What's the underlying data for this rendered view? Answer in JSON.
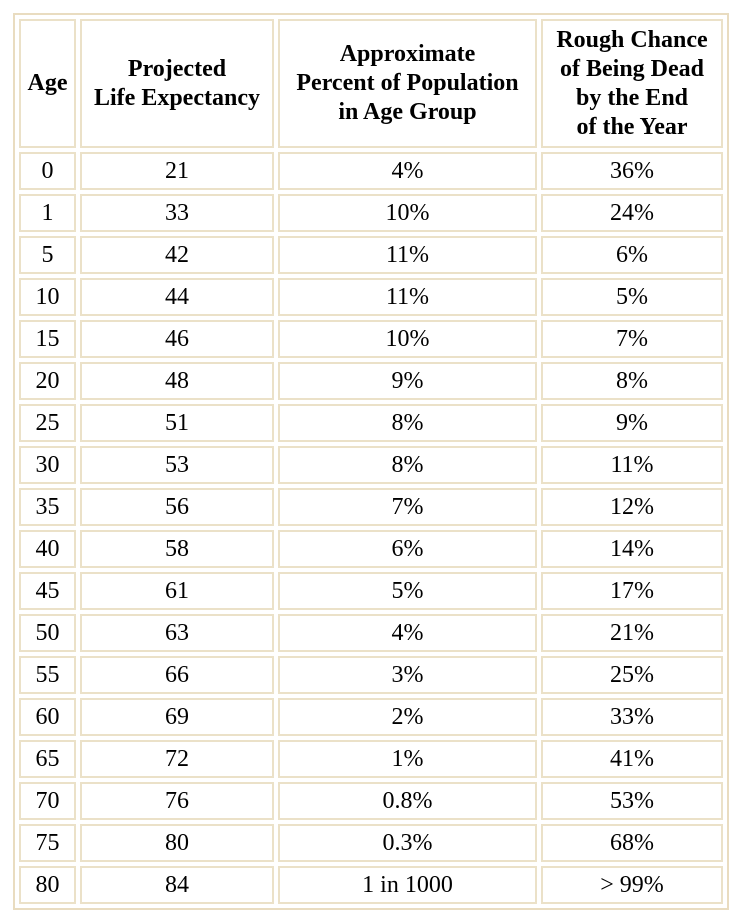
{
  "table": {
    "headers": [
      "Age",
      "Projected\nLife Expectancy",
      "Approximate\nPercent of Population\nin Age Group",
      "Rough Chance\nof Being Dead\nby the End\nof the Year"
    ],
    "rows": [
      [
        "0",
        "21",
        "4%",
        "36%"
      ],
      [
        "1",
        "33",
        "10%",
        "24%"
      ],
      [
        "5",
        "42",
        "11%",
        "6%"
      ],
      [
        "10",
        "44",
        "11%",
        "5%"
      ],
      [
        "15",
        "46",
        "10%",
        "7%"
      ],
      [
        "20",
        "48",
        "9%",
        "8%"
      ],
      [
        "25",
        "51",
        "8%",
        "9%"
      ],
      [
        "30",
        "53",
        "8%",
        "11%"
      ],
      [
        "35",
        "56",
        "7%",
        "12%"
      ],
      [
        "40",
        "58",
        "6%",
        "14%"
      ],
      [
        "45",
        "61",
        "5%",
        "17%"
      ],
      [
        "50",
        "63",
        "4%",
        "21%"
      ],
      [
        "55",
        "66",
        "3%",
        "25%"
      ],
      [
        "60",
        "69",
        "2%",
        "33%"
      ],
      [
        "65",
        "72",
        "1%",
        "41%"
      ],
      [
        "70",
        "76",
        "0.8%",
        "53%"
      ],
      [
        "75",
        "80",
        "0.3%",
        "68%"
      ],
      [
        "80",
        "84",
        "1 in 1000",
        "> 99%"
      ]
    ]
  },
  "colors": {
    "border": "#ebe1c8",
    "outer_border": "#e9dcc0",
    "background": "#ffffff",
    "text": "#000000"
  }
}
